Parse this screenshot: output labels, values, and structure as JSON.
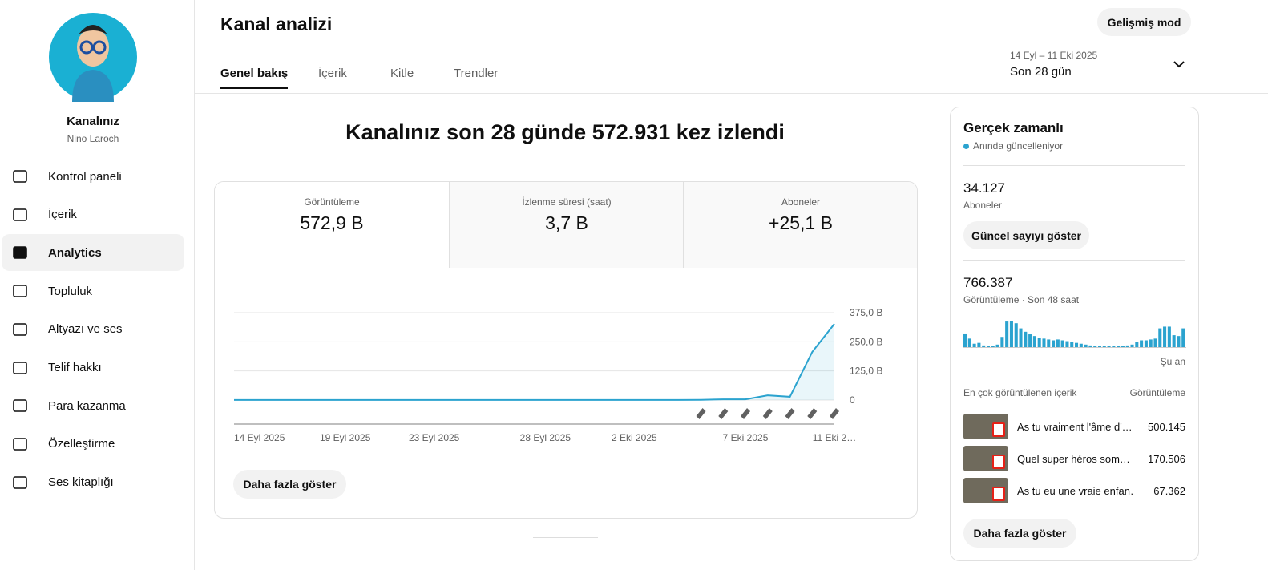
{
  "sidebar": {
    "channel_title": "Kanalınız",
    "channel_name": "Nino Laroch",
    "nav": [
      "Kontrol paneli",
      "İçerik",
      "Analytics",
      "Topluluk",
      "Altyazı ve ses",
      "Telif hakkı",
      "Para kazanma",
      "Özelleştirme",
      "Ses kitaplığı"
    ],
    "active": 2
  },
  "header": {
    "title": "Kanal analizi",
    "advanced_button": "Gelişmiş mod",
    "tabs": [
      "Genel bakış",
      "İçerik",
      "Kitle",
      "Trendler"
    ],
    "active_tab": 0,
    "date_range": "14 Eyl – 11 Eki 2025",
    "period": "Son 28 gün"
  },
  "overview": {
    "headline": "Kanalınız son 28 günde 572.931 kez izlendi",
    "metrics": [
      {
        "label": "Görüntüleme",
        "value": "572,9 B"
      },
      {
        "label": "İzlenme süresi (saat)",
        "value": "3,7 B"
      },
      {
        "label": "Aboneler",
        "value": "+25,1 B"
      }
    ],
    "chart_data": {
      "type": "line",
      "categories": [
        "14 Eyl 2025",
        null,
        null,
        null,
        null,
        "19 Eyl 2025",
        null,
        null,
        null,
        "23 Eyl 2025",
        null,
        null,
        null,
        null,
        "28 Eyl 2025",
        null,
        null,
        null,
        "2 Eki 2025",
        null,
        null,
        null,
        null,
        "7 Eki 2025",
        null,
        null,
        null,
        "11 Eki 2…"
      ],
      "series": [
        {
          "name": "Görüntüleme",
          "color": "#2ba3cf",
          "values": [
            0.5,
            0.5,
            0.5,
            0.5,
            0.5,
            0.5,
            0.5,
            0.5,
            0.5,
            0.5,
            0.5,
            0.5,
            0.5,
            0.5,
            0.5,
            0.5,
            0.5,
            0.5,
            0.5,
            0.5,
            0.5,
            1,
            3,
            3,
            20,
            14,
            206,
            327
          ]
        }
      ],
      "ylim": [
        0,
        375
      ],
      "yticks": [
        0,
        {
          "value": 125,
          "label": "125,0 B"
        },
        {
          "value": 250,
          "label": "250,0 B"
        },
        {
          "value": 375,
          "label": "375,0 B"
        }
      ],
      "grid": true
    },
    "more_button": "Daha fazla göster"
  },
  "realtime": {
    "title": "Gerçek zamanlı",
    "status": "Anında güncelleniyor",
    "subscribers": "34.127",
    "subscribers_label": "Aboneler",
    "show_count_button": "Güncel sayıyı göster",
    "views": "766.387",
    "views_label": "Görüntüleme · Son 48 saat",
    "chart_data": {
      "type": "bar",
      "color": "#2ba3cf",
      "values": [
        16,
        10,
        4,
        5,
        2,
        1,
        1,
        3,
        12,
        30,
        31,
        28,
        22,
        18,
        15,
        13,
        11,
        10,
        9,
        8,
        9,
        8,
        7,
        6,
        5,
        4,
        3,
        2,
        1,
        1,
        1,
        1,
        1,
        1,
        1,
        2,
        3,
        6,
        8,
        8,
        9,
        10,
        22,
        24,
        24,
        14,
        13,
        22
      ]
    },
    "now_label": "Şu an",
    "top_header": "En çok görüntülenen içerik",
    "top_header_metric": "Görüntüleme",
    "top_items": [
      {
        "title": "As tu vraiment l'âme d'…",
        "views": "500.145"
      },
      {
        "title": "Quel super héros som…",
        "views": "170.506"
      },
      {
        "title": "As tu eu une vraie enfan…",
        "views": "67.362"
      }
    ],
    "more_button": "Daha fazla göster"
  }
}
